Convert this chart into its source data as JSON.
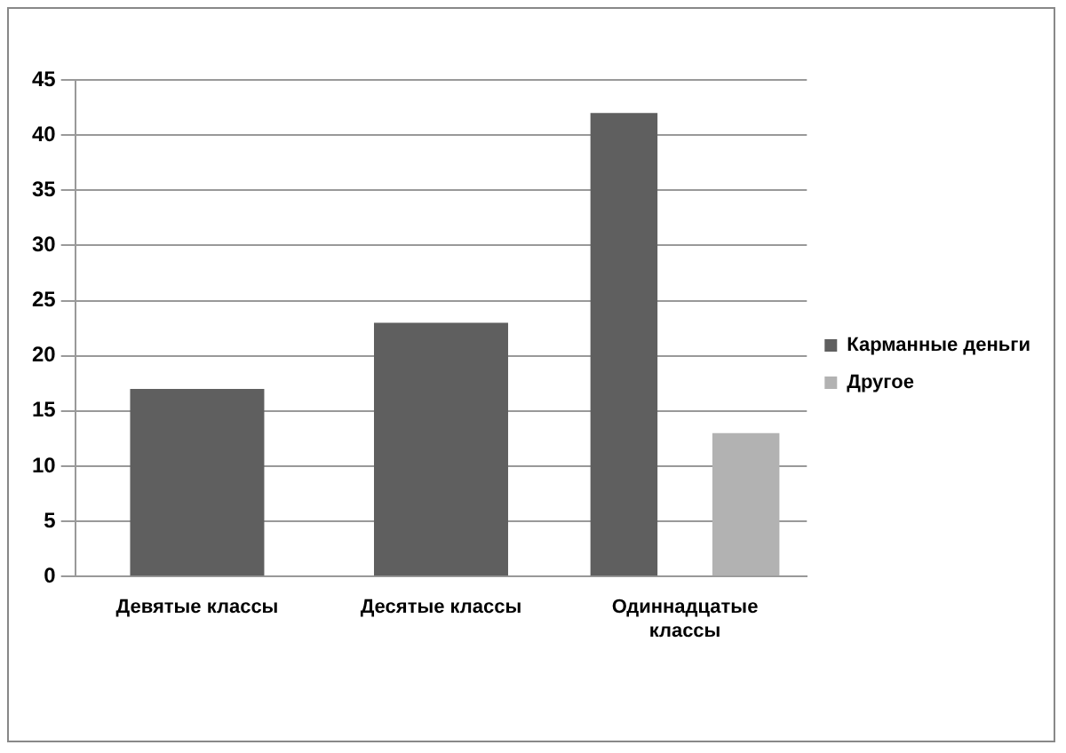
{
  "chart_data": {
    "type": "bar",
    "categories": [
      "Девятые классы",
      "Десятые классы",
      "Одиннадцатые классы"
    ],
    "series": [
      {
        "name": "Карманные деньги",
        "color": "#5f5f5f",
        "values": [
          17,
          23,
          42
        ]
      },
      {
        "name": "Другое",
        "color": "#b2b2b2",
        "values": [
          null,
          null,
          13
        ]
      }
    ],
    "ylim": [
      0,
      45
    ],
    "yticks": [
      0,
      5,
      10,
      15,
      20,
      25,
      30,
      35,
      40,
      45
    ],
    "grid": "y",
    "legend": "right"
  }
}
